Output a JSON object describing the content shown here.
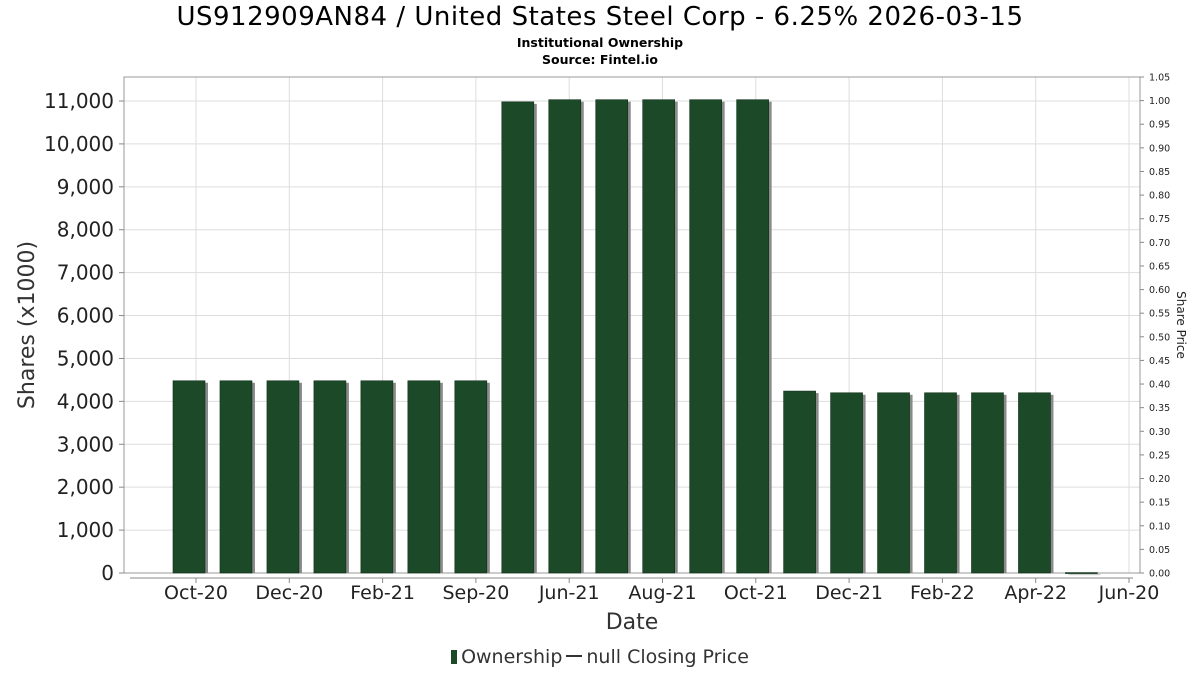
{
  "title": "US912909AN84 / United States Steel Corp - 6.25% 2026-03-15",
  "subtitle": "Institutional Ownership",
  "source": "Source: Fintel.io",
  "legend": {
    "ownership": "Ownership",
    "price": "null Closing Price"
  },
  "colors": {
    "bar": "#1c4a28",
    "bar_shadow": "#8a8a8a",
    "grid": "#dddddd",
    "frame": "#999999"
  },
  "chart_data": {
    "type": "bar",
    "xlabel": "Date",
    "ylabel": "Shares (x1000)",
    "y2label": "Share Price",
    "ylim": [
      0,
      11000
    ],
    "y_ticks": [
      0,
      1000,
      2000,
      3000,
      4000,
      5000,
      6000,
      7000,
      8000,
      9000,
      10000,
      11000
    ],
    "y_tick_labels": [
      "0",
      "1,000",
      "2,000",
      "3,000",
      "4,000",
      "5,000",
      "6,000",
      "7,000",
      "8,000",
      "9,000",
      "10,000",
      "11,000"
    ],
    "y2lim": [
      0,
      1.05
    ],
    "y2_tick_labels": [
      "0.00",
      "0.05",
      "0.10",
      "0.15",
      "0.20",
      "0.25",
      "0.30",
      "0.35",
      "0.40",
      "0.45",
      "0.50",
      "0.55",
      "0.60",
      "0.65",
      "0.70",
      "0.75",
      "0.80",
      "0.85",
      "0.90",
      "0.95",
      "1.00",
      "1.05"
    ],
    "x_tick_labels": [
      "Oct-20",
      "Dec-20",
      "Feb-21",
      "Sep-20",
      "Jun-21",
      "Aug-21",
      "Oct-21",
      "Dec-21",
      "Feb-22",
      "Apr-22",
      "Jun-20"
    ],
    "grid": true,
    "legend_position": "bottom",
    "series": [
      {
        "name": "Ownership",
        "values": [
          4480,
          4480,
          4480,
          4480,
          4480,
          4480,
          4480,
          10980,
          11030,
          11030,
          11030,
          11030,
          11030,
          4240,
          4200,
          4200,
          4200,
          4200,
          4200,
          10
        ]
      }
    ]
  }
}
